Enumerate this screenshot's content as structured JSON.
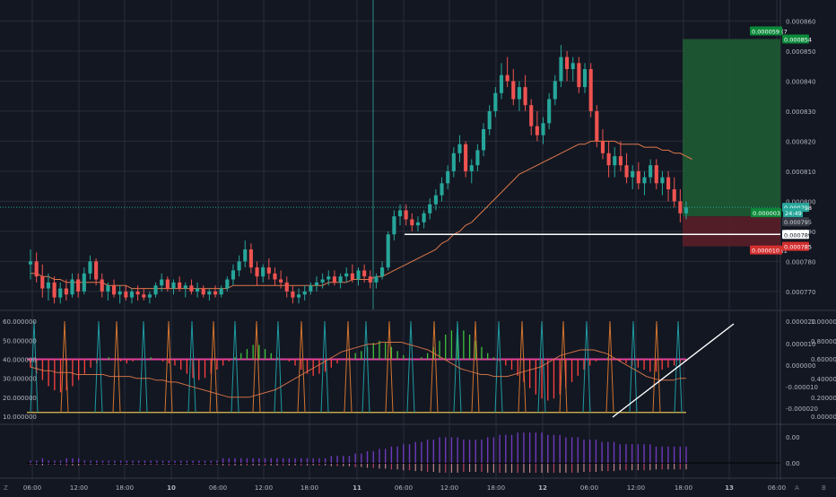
{
  "colors": {
    "background": "#131722",
    "grid": "#2a2e39",
    "up": "#26a69a",
    "down": "#ef5350",
    "ma": "#e0784a",
    "teal_spike": "#1e9aa0",
    "orange_spike": "#d2742e",
    "green_hist": "#3ec23e",
    "red_hist": "#ff4040",
    "pink_line": "#e040a0",
    "yellow_line": "#e0c050",
    "purple": "#7e3fd6",
    "target_zone": "#1e5a32",
    "stop_zone": "#5a1e28"
  },
  "price_axis": {
    "ticks": [
      "0.000860",
      "0.000850",
      "0.000840",
      "0.000830",
      "0.000820",
      "0.000810",
      "0.000800",
      "0.000790",
      "0.000780",
      "0.000770"
    ]
  },
  "price_badges": {
    "target_label": "0.000059 (7",
    "target_price": "0.000854",
    "current_price": "0.000798",
    "position_label": "0.000003 •",
    "countdown": "24:49",
    "entry_price": "0.000795",
    "line_price": "0.000789",
    "stop_label": "0.000010 (1",
    "stop_price": "0.000785"
  },
  "osc_left_axis": {
    "ticks": [
      "60.000000",
      "50.000000",
      "40.000000",
      "30.000000",
      "20.000000",
      "10.000000"
    ]
  },
  "osc_right_axis_1": {
    "ticks": [
      "0.000020",
      "0.000010",
      "0.000000",
      "-0.000010",
      "-0.000020"
    ]
  },
  "osc_right_axis_2": {
    "ticks": [
      "1.000000",
      "0.800000",
      "0.600000",
      "0.400000",
      "0.200000",
      "0.000000"
    ]
  },
  "third_axis": {
    "ticks": [
      "0.00",
      "0.00"
    ]
  },
  "time_axis": {
    "labels": [
      "06:00",
      "12:00",
      "18:00",
      "10",
      "06:00",
      "12:00",
      "18:00",
      "11",
      "06:00",
      "12:00",
      "18:00",
      "12",
      "06:00",
      "12:00",
      "18:00",
      "13",
      "06:00"
    ]
  },
  "bottom_icons": {
    "left": "Z",
    "right_a": "A",
    "right_b": "B"
  },
  "chart_data": {
    "type": "candlestick",
    "x_unit": "hourly candles",
    "candles": [
      [
        0.000779,
        0.000784,
        0.000774,
        0.00078
      ],
      [
        0.00078,
        0.000783,
        0.000773,
        0.000775
      ],
      [
        0.000775,
        0.000779,
        0.000768,
        0.000771
      ],
      [
        0.000771,
        0.000776,
        0.000767,
        0.000773
      ],
      [
        0.000773,
        0.000775,
        0.000766,
        0.000768
      ],
      [
        0.000768,
        0.000773,
        0.000766,
        0.000771
      ],
      [
        0.000771,
        0.000774,
        0.000767,
        0.000769
      ],
      [
        0.000769,
        0.000776,
        0.000768,
        0.000774
      ],
      [
        0.000774,
        0.000776,
        0.000768,
        0.00077
      ],
      [
        0.00077,
        0.000778,
        0.000769,
        0.000776
      ],
      [
        0.000776,
        0.000782,
        0.000774,
        0.00078
      ],
      [
        0.00078,
        0.000781,
        0.000772,
        0.000774
      ],
      [
        0.000774,
        0.000776,
        0.000768,
        0.00077
      ],
      [
        0.00077,
        0.000773,
        0.000767,
        0.000772
      ],
      [
        0.000772,
        0.000774,
        0.000768,
        0.000769
      ],
      [
        0.000769,
        0.000772,
        0.000766,
        0.00077
      ],
      [
        0.00077,
        0.000772,
        0.000767,
        0.000768
      ],
      [
        0.000768,
        0.000771,
        0.000766,
        0.00077
      ],
      [
        0.00077,
        0.000772,
        0.000767,
        0.000769
      ],
      [
        0.000769,
        0.000771,
        0.000767,
        0.000768
      ],
      [
        0.000768,
        0.00077,
        0.000766,
        0.000769
      ],
      [
        0.000769,
        0.000773,
        0.000768,
        0.000772
      ],
      [
        0.000772,
        0.000776,
        0.00077,
        0.000774
      ],
      [
        0.000774,
        0.000775,
        0.00077,
        0.000771
      ],
      [
        0.000771,
        0.000774,
        0.000769,
        0.000773
      ],
      [
        0.000773,
        0.000775,
        0.00077,
        0.000771
      ],
      [
        0.000771,
        0.000773,
        0.000768,
        0.000772
      ],
      [
        0.000772,
        0.000774,
        0.000769,
        0.00077
      ],
      [
        0.00077,
        0.000773,
        0.000768,
        0.000771
      ],
      [
        0.000771,
        0.000772,
        0.000768,
        0.000769
      ],
      [
        0.000769,
        0.000771,
        0.000767,
        0.00077
      ],
      [
        0.00077,
        0.000772,
        0.000768,
        0.000769
      ],
      [
        0.000769,
        0.000772,
        0.000768,
        0.000771
      ],
      [
        0.000771,
        0.000775,
        0.00077,
        0.000774
      ],
      [
        0.000774,
        0.000779,
        0.000772,
        0.000777
      ],
      [
        0.000777,
        0.000782,
        0.000775,
        0.00078
      ],
      [
        0.00078,
        0.000787,
        0.000778,
        0.000784
      ],
      [
        0.000784,
        0.000786,
        0.000776,
        0.000778
      ],
      [
        0.000778,
        0.00078,
        0.000772,
        0.000775
      ],
      [
        0.000775,
        0.000779,
        0.000773,
        0.000778
      ],
      [
        0.000778,
        0.000781,
        0.000774,
        0.000776
      ],
      [
        0.000776,
        0.000778,
        0.000772,
        0.000774
      ],
      [
        0.000774,
        0.000777,
        0.000771,
        0.000773
      ],
      [
        0.000773,
        0.000775,
        0.000768,
        0.00077
      ],
      [
        0.00077,
        0.000772,
        0.000766,
        0.000768
      ],
      [
        0.000768,
        0.000771,
        0.000766,
        0.000769
      ],
      [
        0.000769,
        0.000772,
        0.000767,
        0.00077
      ],
      [
        0.00077,
        0.000773,
        0.000769,
        0.000772
      ],
      [
        0.000772,
        0.000775,
        0.00077,
        0.000773
      ],
      [
        0.000773,
        0.000776,
        0.000771,
        0.000774
      ],
      [
        0.000774,
        0.000777,
        0.000772,
        0.000775
      ],
      [
        0.000775,
        0.000777,
        0.000772,
        0.000773
      ],
      [
        0.000773,
        0.000776,
        0.000771,
        0.000775
      ],
      [
        0.000775,
        0.000778,
        0.000773,
        0.000776
      ],
      [
        0.000776,
        0.000779,
        0.000773,
        0.000774
      ],
      [
        0.000774,
        0.000778,
        0.000772,
        0.000777
      ],
      [
        0.000777,
        0.000779,
        0.000773,
        0.000775
      ],
      [
        0.000775,
        0.000777,
        0.000771,
        0.000773
      ],
      [
        0.000773,
        0.000776,
        0.000771,
        0.000775
      ],
      [
        0.000775,
        0.00078,
        0.000774,
        0.000778
      ],
      [
        0.000778,
        0.00079,
        0.000777,
        0.000789
      ],
      [
        0.000789,
        0.000797,
        0.000787,
        0.000795
      ],
      [
        0.000795,
        0.000799,
        0.000792,
        0.000797
      ],
      [
        0.000797,
        0.000799,
        0.000792,
        0.000794
      ],
      [
        0.000794,
        0.000796,
        0.00079,
        0.000792
      ],
      [
        0.000792,
        0.000795,
        0.00079,
        0.000793
      ],
      [
        0.000793,
        0.000797,
        0.000791,
        0.000796
      ],
      [
        0.000796,
        0.000801,
        0.000794,
        0.000799
      ],
      [
        0.000799,
        0.000804,
        0.000797,
        0.000802
      ],
      [
        0.000802,
        0.000808,
        0.0008,
        0.000806
      ],
      [
        0.000806,
        0.000812,
        0.000804,
        0.00081
      ],
      [
        0.00081,
        0.000818,
        0.000808,
        0.000816
      ],
      [
        0.000816,
        0.000822,
        0.000813,
        0.000819
      ],
      [
        0.000819,
        0.00082,
        0.000808,
        0.00081
      ],
      [
        0.00081,
        0.000814,
        0.000806,
        0.000812
      ],
      [
        0.000812,
        0.000819,
        0.00081,
        0.000817
      ],
      [
        0.000817,
        0.000826,
        0.000815,
        0.000824
      ],
      [
        0.000824,
        0.000832,
        0.000822,
        0.00083
      ],
      [
        0.00083,
        0.000838,
        0.000828,
        0.000836
      ],
      [
        0.000836,
        0.000846,
        0.000834,
        0.000842
      ],
      [
        0.000842,
        0.000848,
        0.000838,
        0.00084
      ],
      [
        0.00084,
        0.000844,
        0.000832,
        0.000834
      ],
      [
        0.000834,
        0.00084,
        0.00083,
        0.000838
      ],
      [
        0.000838,
        0.000842,
        0.00083,
        0.000832
      ],
      [
        0.000832,
        0.000834,
        0.000822,
        0.000825
      ],
      [
        0.000825,
        0.00083,
        0.00082,
        0.000822
      ],
      [
        0.000822,
        0.000828,
        0.000819,
        0.000826
      ],
      [
        0.000826,
        0.000836,
        0.000824,
        0.000834
      ],
      [
        0.000834,
        0.000842,
        0.000832,
        0.00084
      ],
      [
        0.00084,
        0.000852,
        0.000838,
        0.000848
      ],
      [
        0.000848,
        0.00085,
        0.00084,
        0.000844
      ],
      [
        0.000844,
        0.000848,
        0.00084,
        0.000846
      ],
      [
        0.000846,
        0.000848,
        0.000836,
        0.000838
      ],
      [
        0.000838,
        0.000846,
        0.000836,
        0.000844
      ],
      [
        0.000844,
        0.000846,
        0.000828,
        0.00083
      ],
      [
        0.00083,
        0.000832,
        0.000818,
        0.00082
      ],
      [
        0.00082,
        0.000824,
        0.000814,
        0.000816
      ],
      [
        0.000816,
        0.00082,
        0.000808,
        0.000812
      ],
      [
        0.000812,
        0.000818,
        0.000808,
        0.000815
      ],
      [
        0.000815,
        0.00082,
        0.00081,
        0.000812
      ],
      [
        0.000812,
        0.000816,
        0.000806,
        0.000808
      ],
      [
        0.000808,
        0.000812,
        0.000804,
        0.00081
      ],
      [
        0.00081,
        0.000813,
        0.000804,
        0.000806
      ],
      [
        0.000806,
        0.00081,
        0.000802,
        0.000808
      ],
      [
        0.000808,
        0.000814,
        0.000806,
        0.000812
      ],
      [
        0.000812,
        0.000814,
        0.000804,
        0.000806
      ],
      [
        0.000806,
        0.00081,
        0.000802,
        0.000808
      ],
      [
        0.000808,
        0.00081,
        0.0008,
        0.000804
      ],
      [
        0.000804,
        0.000808,
        0.000798,
        0.0008
      ],
      [
        0.0008,
        0.000804,
        0.000793,
        0.000796
      ],
      [
        0.000796,
        0.0008,
        0.000794,
        0.000798
      ]
    ],
    "moving_average": [
      0.000776,
      0.000776,
      0.000775,
      0.000775,
      0.000774,
      0.000774,
      0.000773,
      0.000773,
      0.000773,
      0.000773,
      0.000773,
      0.000773,
      0.000773,
      0.000772,
      0.000772,
      0.000772,
      0.000772,
      0.000771,
      0.000771,
      0.000771,
      0.000771,
      0.000771,
      0.000771,
      0.000771,
      0.000771,
      0.000771,
      0.000771,
      0.000771,
      0.000771,
      0.000771,
      0.000771,
      0.000771,
      0.000771,
      0.000771,
      0.000772,
      0.000772,
      0.000772,
      0.000772,
      0.000772,
      0.000772,
      0.000772,
      0.000772,
      0.000772,
      0.000772,
      0.000772,
      0.000772,
      0.000772,
      0.000772,
      0.000772,
      0.000772,
      0.000773,
      0.000773,
      0.000773,
      0.000773,
      0.000774,
      0.000774,
      0.000774,
      0.000774,
      0.000775,
      0.000775,
      0.000776,
      0.000777,
      0.000778,
      0.000779,
      0.00078,
      0.000781,
      0.000782,
      0.000783,
      0.000784,
      0.000786,
      0.000787,
      0.000789,
      0.00079,
      0.000792,
      0.000793,
      0.000795,
      0.000797,
      0.000799,
      0.000801,
      0.000803,
      0.000805,
      0.000807,
      0.000809,
      0.00081,
      0.000811,
      0.000812,
      0.000813,
      0.000814,
      0.000815,
      0.000816,
      0.000817,
      0.000818,
      0.000819,
      0.000819,
      0.00082,
      0.00082,
      0.00082,
      0.00082,
      0.00082,
      0.000819,
      0.000819,
      0.000819,
      0.000819,
      0.000818,
      0.000818,
      0.000818,
      0.000817,
      0.000817,
      0.000816,
      0.000816,
      0.000815,
      0.000814
    ],
    "horizontal_line_price": 0.000789,
    "target_price": 0.000854,
    "entry_price": 0.000795,
    "stop_price": 0.000785,
    "oscillator_histogram": [
      -4,
      -7,
      -10,
      -13,
      -15,
      -16,
      -15,
      -13,
      -10,
      -7,
      -4,
      -2,
      0,
      1,
      0,
      -1,
      -2,
      -1,
      0,
      0,
      1,
      0,
      -1,
      -2,
      -3,
      -5,
      -7,
      -9,
      -10,
      -9,
      -7,
      -5,
      -3,
      -1,
      1,
      3,
      5,
      7,
      7,
      5,
      3,
      1,
      0,
      -1,
      -3,
      -5,
      -7,
      -8,
      -7,
      -6,
      -4,
      -2,
      0,
      1,
      3,
      4,
      6,
      8,
      9,
      8,
      6,
      4,
      2,
      1,
      0,
      1,
      3,
      6,
      9,
      12,
      14,
      15,
      14,
      12,
      9,
      6,
      3,
      1,
      -1,
      -3,
      -5,
      -8,
      -11,
      -14,
      -17,
      -19,
      -20,
      -19,
      -17,
      -14,
      -11,
      -8,
      -5,
      -3,
      -1,
      0,
      1,
      0,
      -1,
      -2,
      -3,
      -4,
      -5,
      -6,
      -6,
      -5,
      -4,
      -3,
      -2,
      -1
    ],
    "oscillator_line": [
      36,
      35,
      34,
      34,
      33,
      33,
      33,
      32,
      32,
      32,
      32,
      32,
      31,
      31,
      31,
      31,
      30,
      30,
      30,
      29,
      29,
      28,
      28,
      27,
      26,
      25,
      24,
      23,
      22,
      21,
      20,
      20,
      20,
      20,
      21,
      22,
      23,
      24,
      26,
      28,
      30,
      32,
      34,
      36,
      38,
      40,
      42,
      44,
      45,
      46,
      47,
      48,
      48,
      49,
      49,
      49,
      49,
      48,
      47,
      46,
      45,
      43,
      41,
      39,
      37,
      35,
      34,
      33,
      32,
      32,
      31,
      31,
      31,
      32,
      33,
      34,
      35,
      36,
      38,
      40,
      42,
      43,
      44,
      45,
      45,
      45,
      44,
      43,
      41,
      39,
      37,
      35,
      33,
      31,
      30,
      29,
      29,
      29,
      30,
      30
    ],
    "oscillator_levels": {
      "upper": 40,
      "lower": 12
    },
    "third_panel": {
      "type": "histogram",
      "values": [
        1,
        1,
        2,
        1,
        1,
        1,
        2,
        2,
        2,
        1,
        1,
        1,
        1,
        1,
        1,
        1,
        1,
        1,
        1,
        1,
        1,
        1,
        1,
        1,
        1,
        1,
        1,
        1,
        1,
        1,
        1,
        1,
        2,
        2,
        2,
        2,
        2,
        2,
        2,
        2,
        2,
        2,
        2,
        2,
        2,
        2,
        2,
        2,
        2,
        2,
        3,
        3,
        3,
        3,
        4,
        4,
        5,
        5,
        6,
        6,
        7,
        7,
        8,
        8,
        9,
        9,
        10,
        10,
        11,
        11,
        11,
        11,
        10,
        10,
        10,
        10,
        11,
        11,
        12,
        12,
        12,
        13,
        13,
        13,
        13,
        13,
        12,
        12,
        12,
        11,
        11,
        11,
        10,
        10,
        10,
        9,
        9,
        9,
        8,
        8,
        8,
        8,
        8,
        8,
        7,
        7,
        7,
        7,
        7,
        7
      ]
    }
  }
}
